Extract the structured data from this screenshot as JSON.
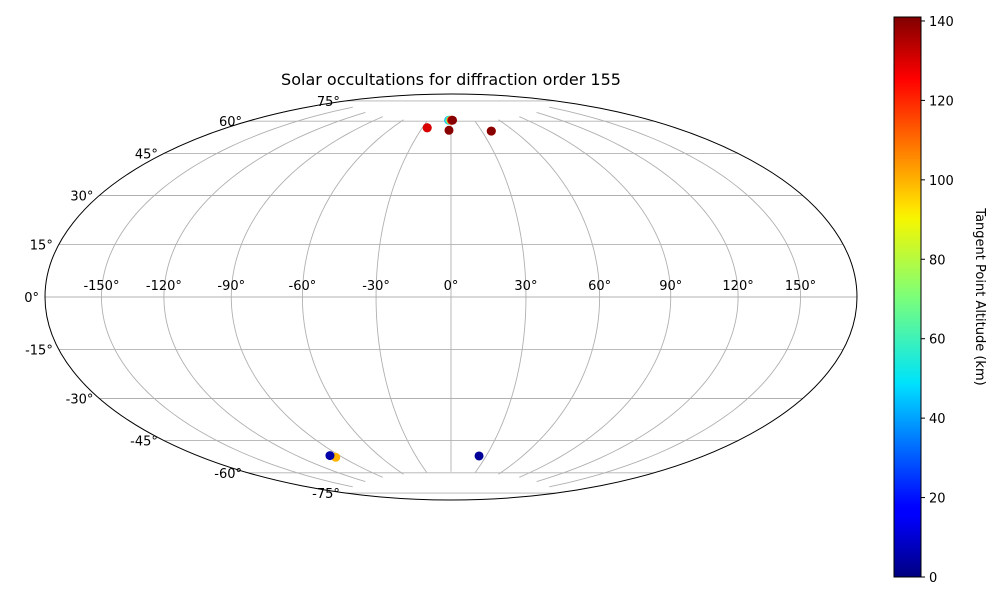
{
  "chart_data": {
    "type": "scatter",
    "projection": "hammer",
    "title": "Solar occultations for diffraction order 155",
    "xlabel": "",
    "ylabel": "",
    "grid": true,
    "longitude_ticks": [
      "-150°",
      "-120°",
      "-90°",
      "-60°",
      "-30°",
      "0°",
      "30°",
      "60°",
      "90°",
      "120°",
      "150°"
    ],
    "latitude_ticks": [
      "-75°",
      "-60°",
      "-45°",
      "-30°",
      "-15°",
      "0°",
      "15°",
      "30°",
      "45°",
      "60°",
      "75°"
    ],
    "colorbar": {
      "label": "Tangent Point Altitude (km)",
      "colormap": "jet",
      "range": [
        0,
        141
      ],
      "ticks": [
        "0",
        "20",
        "40",
        "60",
        "80",
        "100",
        "120",
        "140"
      ]
    },
    "points": [
      {
        "lon": -25,
        "lat": 72,
        "alt": 140
      },
      {
        "lon": -25,
        "lat": 72,
        "alt": 130
      },
      {
        "lon": -3,
        "lat": 76,
        "alt": 40
      },
      {
        "lon": -2,
        "lat": 76,
        "alt": 60
      },
      {
        "lon": 0,
        "lat": 76,
        "alt": 100
      },
      {
        "lon": 1,
        "lat": 76,
        "alt": 130
      },
      {
        "lon": 2,
        "lat": 76,
        "alt": 140
      },
      {
        "lon": -2,
        "lat": 71,
        "alt": 140
      },
      {
        "lon": 39,
        "lat": 70,
        "alt": 120
      },
      {
        "lon": 39,
        "lat": 70,
        "alt": 140
      },
      {
        "lon": -95,
        "lat": -64,
        "alt": 100
      },
      {
        "lon": -97,
        "lat": -63,
        "alt": 5
      },
      {
        "lon": 24,
        "lat": -67,
        "alt": 3
      }
    ]
  }
}
